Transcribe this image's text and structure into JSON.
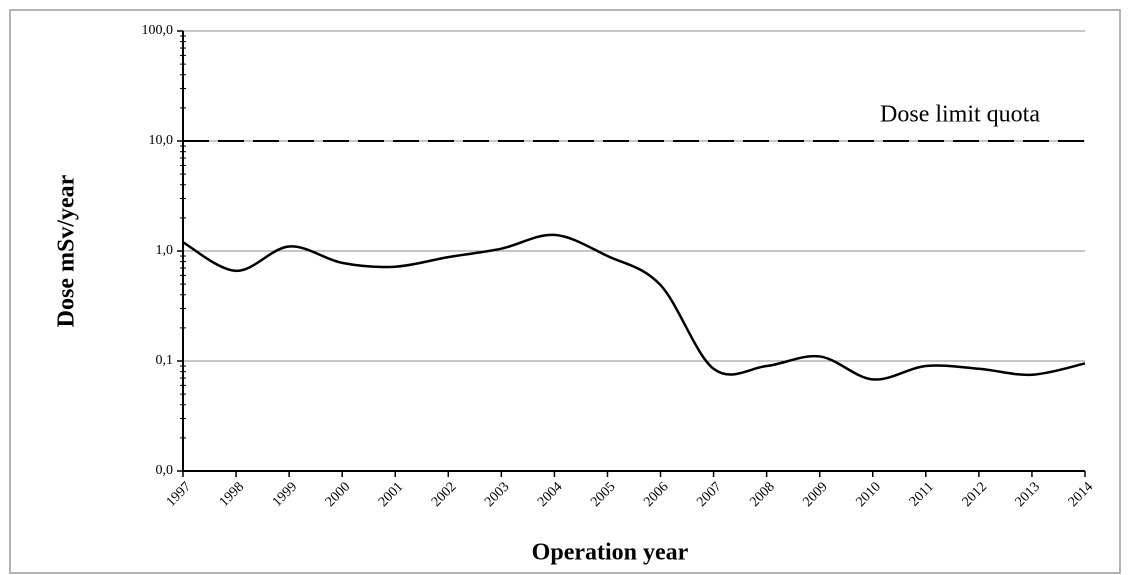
{
  "chart_data": {
    "type": "line",
    "y_label": "Dose mSv/year",
    "x_label": "Operation year",
    "x": [
      1997,
      1998,
      1999,
      2000,
      2001,
      2002,
      2003,
      2004,
      2005,
      2006,
      2007,
      2008,
      2009,
      2010,
      2011,
      2012,
      2013,
      2014
    ],
    "series": [
      {
        "color": "#000000",
        "values": [
          1.2,
          0.66,
          1.1,
          0.78,
          0.72,
          0.88,
          1.05,
          1.4,
          0.9,
          0.49,
          0.085,
          0.09,
          0.11,
          0.068,
          0.09,
          0.085,
          0.075,
          0.095
        ]
      }
    ],
    "xlim": [
      1997,
      2014
    ],
    "xticks": [
      1997,
      1998,
      1999,
      2000,
      2001,
      2002,
      2003,
      2004,
      2005,
      2006,
      2007,
      2008,
      2009,
      2010,
      2011,
      2012,
      2013,
      2014
    ],
    "ylim": [
      0.01,
      100
    ],
    "yticks": [
      {
        "value": 0.01,
        "label": "0,0"
      },
      {
        "value": 0.1,
        "label": "0,1"
      },
      {
        "value": 1,
        "label": "1,0"
      },
      {
        "value": 10,
        "label": "10,0"
      },
      {
        "value": 100,
        "label": "100,0"
      }
    ],
    "log_y": true,
    "grid": true,
    "reference_line": {
      "value": 10,
      "label": "Dose limit quota",
      "color": "#000000"
    }
  }
}
